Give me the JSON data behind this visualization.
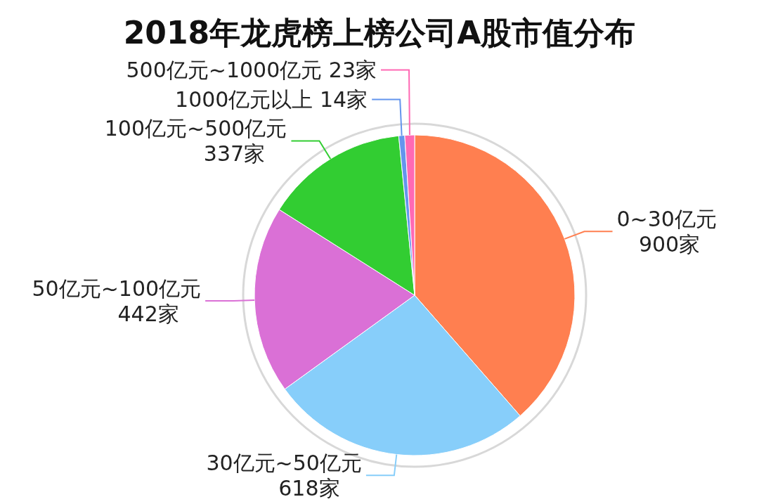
{
  "chart_data": {
    "type": "pie",
    "title": "2018年龙虎榜上榜公司A股市值分布",
    "categories": [
      "0~30亿元",
      "30亿元~50亿元",
      "50亿元~100亿元",
      "100亿元~500亿元",
      "1000亿元以上",
      "500亿元~1000亿元"
    ],
    "values": [
      900,
      618,
      442,
      337,
      14,
      23
    ],
    "value_labels": [
      "900家",
      "618家",
      "442家",
      "337家",
      "14家",
      "23家"
    ],
    "colors": [
      "#ff7f50",
      "#87cefa",
      "#da70d6",
      "#32cd32",
      "#6495ed",
      "#ff69b4"
    ],
    "legend": false
  }
}
